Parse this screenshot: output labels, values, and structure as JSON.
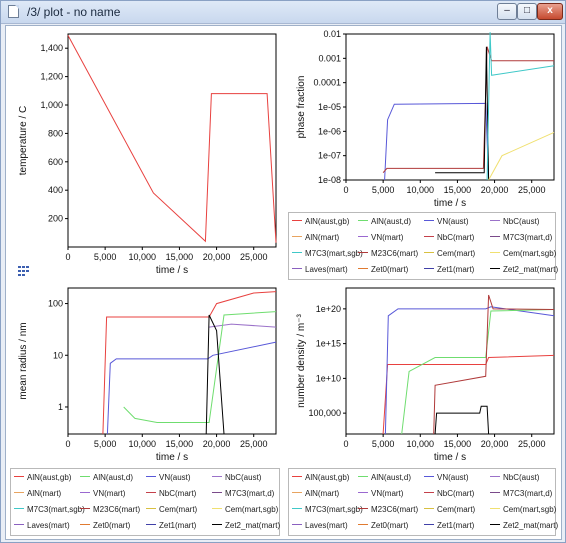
{
  "window": {
    "title": "/3/ plot - no name",
    "min_label": "–",
    "max_label": "□",
    "close_label": "x"
  },
  "series": [
    {
      "name": "AlN(aust,gb)",
      "color": "#e8413f"
    },
    {
      "name": "AlN(aust,d)",
      "color": "#6fdd6f"
    },
    {
      "name": "VN(aust)",
      "color": "#5858d8"
    },
    {
      "name": "NbC(aust)",
      "color": "#9b72c9"
    },
    {
      "name": "AlN(mart)",
      "color": "#e8a460"
    },
    {
      "name": "VN(mart)",
      "color": "#9a68d0"
    },
    {
      "name": "NbC(mart)",
      "color": "#c4404a"
    },
    {
      "name": "M7C3(mart,d)",
      "color": "#7a4a8a"
    },
    {
      "name": "M7C3(mart,sgb)",
      "color": "#3fc8c8"
    },
    {
      "name": "M23C6(mart)",
      "color": "#b03a3a"
    },
    {
      "name": "Cem(mart)",
      "color": "#d8c040"
    },
    {
      "name": "Cem(mart,sgb)",
      "color": "#f0e070"
    },
    {
      "name": "Laves(mart)",
      "color": "#8a60c0"
    },
    {
      "name": "Zet0(mart)",
      "color": "#e07a30"
    },
    {
      "name": "Zet1(mart)",
      "color": "#4040a8"
    },
    {
      "name": "Zet2_mat(mart)",
      "color": "#000000"
    }
  ],
  "charts": {
    "temperature": {
      "ylabel": "temperature / C",
      "xlabel": "time / s",
      "yticks": [
        "200",
        "400",
        "600",
        "800",
        "1,000",
        "1,200",
        "1,400"
      ],
      "xticks": [
        "0",
        "5,000",
        "10,000",
        "15,000",
        "20,000",
        "25,000"
      ]
    },
    "phase_fraction": {
      "ylabel": "phase fraction",
      "xlabel": "time / s",
      "yticks": [
        "1e-08",
        "1e-07",
        "1e-06",
        "1e-05",
        "0.0001",
        "0.001",
        "0.01"
      ],
      "xticks": [
        "0",
        "5,000",
        "10,000",
        "15,000",
        "20,000",
        "25,000"
      ]
    },
    "mean_radius": {
      "ylabel": "mean radius / nm",
      "xlabel": "time / s",
      "yticks": [
        "1",
        "10",
        "100"
      ],
      "xticks": [
        "0",
        "5,000",
        "10,000",
        "15,000",
        "20,000",
        "25,000"
      ]
    },
    "number_density": {
      "ylabel": "number density / m⁻³",
      "xlabel": "time / s",
      "yticks": [
        "100,000",
        "1e+10",
        "1e+15",
        "1e+20"
      ],
      "xticks": [
        "0",
        "5,000",
        "10,000",
        "15,000",
        "20,000",
        "25,000"
      ]
    }
  },
  "chart_data": [
    {
      "type": "line",
      "title": "",
      "xlabel": "time / s",
      "ylabel": "temperature / C",
      "xlim": [
        0,
        28000
      ],
      "ylim": [
        0,
        1500
      ],
      "series": [
        {
          "values": [
            [
              0,
              1490
            ],
            [
              11500,
              380
            ],
            [
              18500,
              40
            ],
            [
              19300,
              1080
            ],
            [
              26800,
              1080
            ],
            [
              28000,
              30
            ]
          ]
        }
      ]
    },
    {
      "type": "line",
      "xlabel": "time / s",
      "ylabel": "phase fraction",
      "scale": "log",
      "xlim": [
        0,
        28000
      ],
      "ylim": [
        1e-08,
        0.01
      ],
      "series": [
        {
          "name": "VN(aust)",
          "values": [
            [
              5200,
              1e-08
            ],
            [
              5600,
              3e-06
            ],
            [
              6500,
              1.3e-05
            ],
            [
              18800,
              1.4e-05
            ],
            [
              19200,
              1e-08
            ]
          ]
        },
        {
          "name": "M23C6(mart)",
          "values": [
            [
              5000,
              2e-08
            ],
            [
              5500,
              3e-08
            ],
            [
              18500,
              3e-08
            ],
            [
              19000,
              0.003
            ],
            [
              19600,
              0.0008
            ],
            [
              28000,
              0.0008
            ]
          ]
        },
        {
          "name": "Zet2_mat(mart)",
          "values": [
            [
              12000,
              2e-08
            ],
            [
              18600,
              2e-08
            ],
            [
              18900,
              0.003
            ],
            [
              19200,
              1e-08
            ]
          ]
        },
        {
          "name": "M7C3(mart,sgb)",
          "values": [
            [
              19000,
              1e-08
            ],
            [
              19400,
              0.012
            ],
            [
              19600,
              0.0002
            ],
            [
              28000,
              0.0005
            ]
          ]
        },
        {
          "name": "Cem(mart,sgb)",
          "values": [
            [
              19200,
              1e-08
            ],
            [
              21000,
              1e-07
            ],
            [
              28000,
              9e-07
            ]
          ]
        }
      ]
    },
    {
      "type": "line",
      "xlabel": "time / s",
      "ylabel": "mean radius / nm",
      "scale": "log",
      "xlim": [
        0,
        28000
      ],
      "ylim": [
        0.3,
        200
      ],
      "series": [
        {
          "name": "AlN(aust,gb)",
          "values": [
            [
              4700,
              0.3
            ],
            [
              5200,
              55
            ],
            [
              19000,
              55
            ],
            [
              20000,
              100
            ],
            [
              25000,
              160
            ],
            [
              28000,
              170
            ]
          ]
        },
        {
          "name": "VN(aust)",
          "values": [
            [
              5300,
              0.3
            ],
            [
              5700,
              7
            ],
            [
              6500,
              8.5
            ],
            [
              18800,
              8.5
            ],
            [
              19500,
              10
            ],
            [
              28000,
              18
            ]
          ]
        },
        {
          "name": "NbC(aust)",
          "values": [
            [
              19000,
              35
            ],
            [
              22000,
              40
            ],
            [
              28000,
              35
            ]
          ]
        },
        {
          "name": "AlN(aust,d)",
          "values": [
            [
              7500,
              1
            ],
            [
              9000,
              0.6
            ],
            [
              12000,
              0.5
            ],
            [
              19000,
              0.5
            ],
            [
              21000,
              60
            ],
            [
              28000,
              70
            ]
          ]
        },
        {
          "name": "Zet2_mat(mart)",
          "values": [
            [
              12000,
              0.3
            ],
            [
              18600,
              0.3
            ],
            [
              19000,
              60
            ],
            [
              20000,
              30
            ],
            [
              21000,
              0.3
            ]
          ]
        }
      ]
    },
    {
      "type": "line",
      "xlabel": "time / s",
      "ylabel": "number density / m⁻³",
      "scale": "log",
      "xlim": [
        0,
        28000
      ],
      "ylim": [
        100,
        1e+23
      ],
      "series": [
        {
          "name": "AlN(aust,gb)",
          "values": [
            [
              5000,
              100
            ],
            [
              5600,
              1000000000000.0
            ],
            [
              18800,
              1000000000000.0
            ],
            [
              19200,
              10000000000000.0
            ],
            [
              28000,
              20000000000000.0
            ]
          ]
        },
        {
          "name": "VN(aust)",
          "values": [
            [
              5300,
              100
            ],
            [
              5700,
              1e+19
            ],
            [
              7000,
              1e+20
            ],
            [
              18800,
              1e+20
            ],
            [
              19500,
              2e+20
            ],
            [
              28000,
              1e+19
            ]
          ]
        },
        {
          "name": "AlN(aust,d)",
          "values": [
            [
              7500,
              100
            ],
            [
              8500,
              100000000000.0
            ],
            [
              12000,
              10000000000000.0
            ],
            [
              18800,
              10000000000000.0
            ],
            [
              19500,
              5e+19
            ],
            [
              28000,
              8e+19
            ]
          ]
        },
        {
          "name": "Zet2_mat(mart)",
          "values": [
            [
              12000,
              100
            ],
            [
              12200,
              100000.0
            ],
            [
              18000,
              100000.0
            ],
            [
              18200,
              1000000.0
            ],
            [
              19000,
              1000000.0
            ],
            [
              19200,
              100
            ]
          ]
        },
        {
          "name": "M23C6(mart)",
          "values": [
            [
              11800,
              100
            ],
            [
              12000,
              1000000000.0
            ],
            [
              18800,
              20000000000.0
            ],
            [
              19200,
              1e+22
            ],
            [
              19800,
              1e+20
            ],
            [
              28000,
              8e+19
            ]
          ]
        }
      ]
    }
  ]
}
